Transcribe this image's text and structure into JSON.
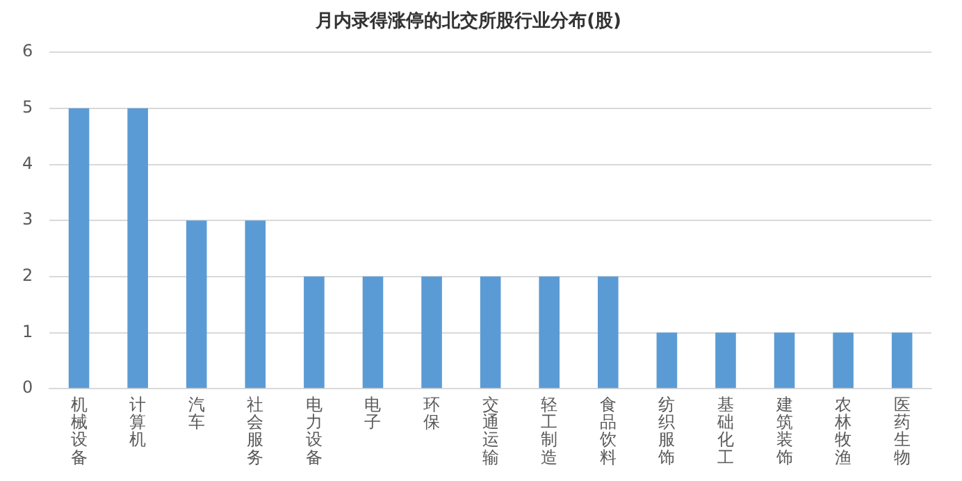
{
  "chart_data": {
    "type": "bar",
    "title": "月内录得涨停的北交所股行业分布(股)",
    "categories": [
      "机械设备",
      "计算机",
      "汽车",
      "社会服务",
      "电力设备",
      "电子",
      "环保",
      "交通运输",
      "轻工制造",
      "食品饮料",
      "纺织服饰",
      "基础化工",
      "建筑装饰",
      "农林牧渔",
      "医药生物"
    ],
    "values": [
      5,
      5,
      3,
      3,
      2,
      2,
      2,
      2,
      2,
      2,
      1,
      1,
      1,
      1,
      1
    ],
    "color": "#5b9bd5",
    "ylim": [
      0,
      6
    ],
    "yticks": [
      0,
      1,
      2,
      3,
      4,
      5,
      6
    ],
    "grid": "y"
  }
}
